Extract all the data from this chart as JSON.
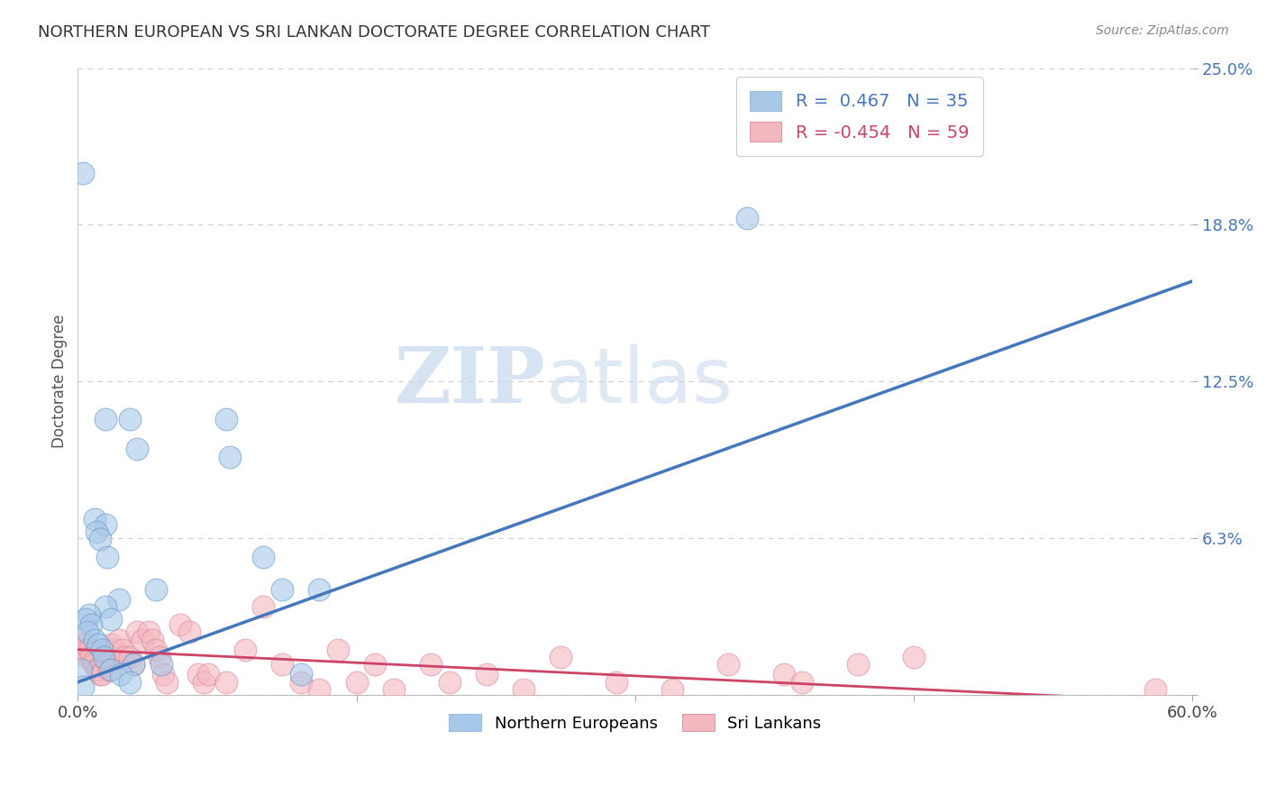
{
  "title": "NORTHERN EUROPEAN VS SRI LANKAN DOCTORATE DEGREE CORRELATION CHART",
  "source": "Source: ZipAtlas.com",
  "xlabel": "",
  "ylabel": "Doctorate Degree",
  "xlim": [
    0.0,
    0.6
  ],
  "ylim": [
    0.0,
    0.25
  ],
  "yticks": [
    0.0,
    0.0625,
    0.125,
    0.1875,
    0.25
  ],
  "ytick_labels": [
    "",
    "6.3%",
    "12.5%",
    "18.8%",
    "25.0%"
  ],
  "xticks": [
    0.0,
    0.6
  ],
  "xtick_labels": [
    "0.0%",
    "60.0%"
  ],
  "blue_R": "0.467",
  "blue_N": "35",
  "pink_R": "-0.454",
  "pink_N": "59",
  "blue_color": "#a8c8e8",
  "pink_color": "#f4b8c0",
  "blue_edge_color": "#6699cc",
  "pink_edge_color": "#dd8899",
  "blue_line_color": "#4477bb",
  "pink_line_color": "#cc4466",
  "watermark_zip": "#c8d8ee",
  "watermark_atlas": "#c8d8ee",
  "background_color": "#ffffff",
  "blue_points": [
    [
      0.003,
      0.208
    ],
    [
      0.028,
      0.11
    ],
    [
      0.015,
      0.11
    ],
    [
      0.08,
      0.11
    ],
    [
      0.032,
      0.098
    ],
    [
      0.082,
      0.095
    ],
    [
      0.009,
      0.07
    ],
    [
      0.015,
      0.068
    ],
    [
      0.01,
      0.065
    ],
    [
      0.012,
      0.062
    ],
    [
      0.016,
      0.055
    ],
    [
      0.1,
      0.055
    ],
    [
      0.11,
      0.042
    ],
    [
      0.042,
      0.042
    ],
    [
      0.13,
      0.042
    ],
    [
      0.022,
      0.038
    ],
    [
      0.015,
      0.035
    ],
    [
      0.006,
      0.032
    ],
    [
      0.004,
      0.03
    ],
    [
      0.018,
      0.03
    ],
    [
      0.007,
      0.028
    ],
    [
      0.005,
      0.025
    ],
    [
      0.009,
      0.022
    ],
    [
      0.011,
      0.02
    ],
    [
      0.013,
      0.018
    ],
    [
      0.014,
      0.015
    ],
    [
      0.03,
      0.012
    ],
    [
      0.045,
      0.012
    ],
    [
      0.002,
      0.01
    ],
    [
      0.018,
      0.01
    ],
    [
      0.023,
      0.008
    ],
    [
      0.12,
      0.008
    ],
    [
      0.028,
      0.005
    ],
    [
      0.003,
      0.003
    ],
    [
      0.36,
      0.19
    ]
  ],
  "pink_points": [
    [
      0.002,
      0.022
    ],
    [
      0.003,
      0.02
    ],
    [
      0.004,
      0.018
    ],
    [
      0.005,
      0.015
    ],
    [
      0.006,
      0.018
    ],
    [
      0.007,
      0.015
    ],
    [
      0.008,
      0.013
    ],
    [
      0.009,
      0.012
    ],
    [
      0.01,
      0.01
    ],
    [
      0.011,
      0.01
    ],
    [
      0.012,
      0.008
    ],
    [
      0.013,
      0.008
    ],
    [
      0.014,
      0.018
    ],
    [
      0.015,
      0.015
    ],
    [
      0.016,
      0.013
    ],
    [
      0.017,
      0.01
    ],
    [
      0.018,
      0.02
    ],
    [
      0.02,
      0.018
    ],
    [
      0.022,
      0.022
    ],
    [
      0.024,
      0.018
    ],
    [
      0.025,
      0.015
    ],
    [
      0.028,
      0.015
    ],
    [
      0.03,
      0.012
    ],
    [
      0.032,
      0.025
    ],
    [
      0.035,
      0.022
    ],
    [
      0.038,
      0.025
    ],
    [
      0.04,
      0.022
    ],
    [
      0.042,
      0.018
    ],
    [
      0.044,
      0.015
    ],
    [
      0.046,
      0.008
    ],
    [
      0.048,
      0.005
    ],
    [
      0.055,
      0.028
    ],
    [
      0.06,
      0.025
    ],
    [
      0.065,
      0.008
    ],
    [
      0.068,
      0.005
    ],
    [
      0.07,
      0.008
    ],
    [
      0.08,
      0.005
    ],
    [
      0.09,
      0.018
    ],
    [
      0.1,
      0.035
    ],
    [
      0.11,
      0.012
    ],
    [
      0.12,
      0.005
    ],
    [
      0.13,
      0.002
    ],
    [
      0.14,
      0.018
    ],
    [
      0.15,
      0.005
    ],
    [
      0.16,
      0.012
    ],
    [
      0.17,
      0.002
    ],
    [
      0.19,
      0.012
    ],
    [
      0.2,
      0.005
    ],
    [
      0.22,
      0.008
    ],
    [
      0.24,
      0.002
    ],
    [
      0.26,
      0.015
    ],
    [
      0.29,
      0.005
    ],
    [
      0.32,
      0.002
    ],
    [
      0.35,
      0.012
    ],
    [
      0.38,
      0.008
    ],
    [
      0.39,
      0.005
    ],
    [
      0.42,
      0.012
    ],
    [
      0.45,
      0.015
    ],
    [
      0.58,
      0.002
    ]
  ],
  "blue_trend_x": [
    0.0,
    0.6
  ],
  "blue_trend_y": [
    0.005,
    0.165
  ],
  "pink_trend_x": [
    0.0,
    0.6
  ],
  "pink_trend_y": [
    0.018,
    -0.003
  ]
}
